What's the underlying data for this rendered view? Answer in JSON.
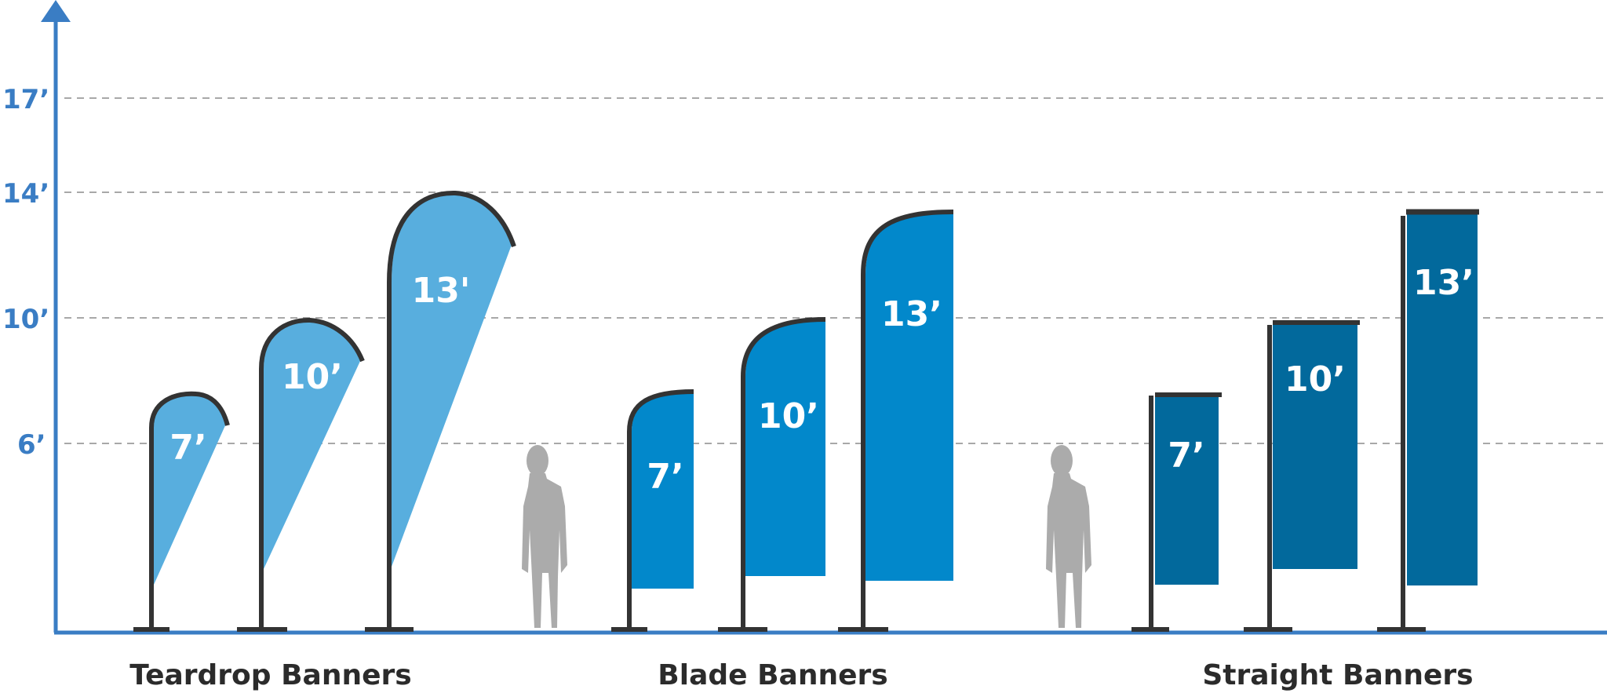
{
  "axis": {
    "ticks": [
      "17’",
      "14’",
      "10’",
      "6’"
    ],
    "color": "#3a7dc4"
  },
  "groups": [
    {
      "name": "Teardrop Banners",
      "color": "#58aede",
      "sizes": [
        "7’",
        "10’",
        "13'"
      ]
    },
    {
      "name": "Blade Banners",
      "color": "#0288cb",
      "sizes": [
        "7’",
        "10’",
        "13’"
      ]
    },
    {
      "name": "Straight Banners",
      "color": "#02699c",
      "sizes": [
        "7’",
        "10’",
        "13’"
      ]
    }
  ],
  "person_icon": "person-silhouette-icon"
}
